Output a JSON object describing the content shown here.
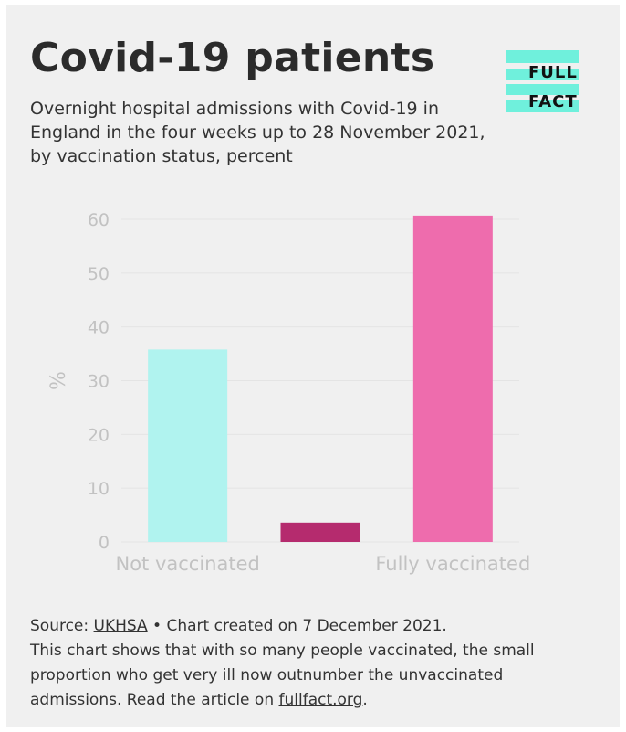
{
  "title": "Covid-19 patients",
  "subtitle": "Overnight hospital admissions with Covid-19 in England in the four weeks up to 28 November 2021, by vaccination status, percent",
  "logo": {
    "line1": "FULL",
    "line2": "FACT",
    "stripe_color": "#6ff0dc"
  },
  "chart_data": {
    "type": "bar",
    "categories": [
      "Not vaccinated",
      "",
      "Fully vaccinated"
    ],
    "x_tick_labels": [
      "Not vaccinated",
      "Fully vaccinated"
    ],
    "values": [
      35.8,
      3.6,
      60.7
    ],
    "colors": [
      "#b0f3ef",
      "#b52b6e",
      "#ee6cad"
    ],
    "ylabel": "%",
    "xlabel": "",
    "ylim": [
      0,
      60
    ],
    "yticks": [
      0,
      10,
      20,
      30,
      40,
      50,
      60
    ],
    "grid": true,
    "legend": "none"
  },
  "footer": {
    "source_prefix": "Source: ",
    "source_link": "UKHSA",
    "created": " • Chart created on 7 December 2021.",
    "description": "This chart shows that with so many people vaccinated, the small proportion who get very ill now outnumber the unvaccinated admissions. Read the article on ",
    "article_link": "fullfact.org",
    "end": "."
  }
}
